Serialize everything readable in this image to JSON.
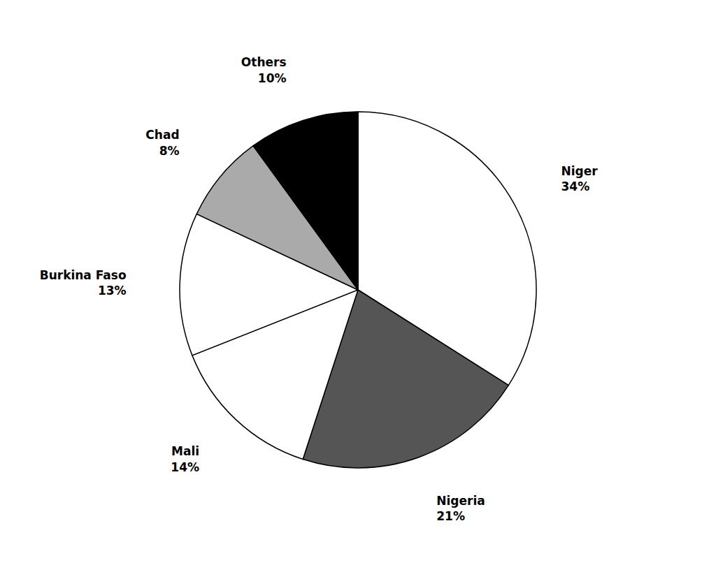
{
  "chart_data": {
    "type": "pie",
    "categories": [
      "Niger",
      "Nigeria",
      "Mali",
      "Burkina Faso",
      "Chad",
      "Others"
    ],
    "values": [
      34,
      21,
      14,
      13,
      8,
      10
    ],
    "value_labels": [
      "34%",
      "21%",
      "14%",
      "13%",
      "8%",
      "10%"
    ],
    "colors": [
      "#ffffff",
      "#555555",
      "#ffffff",
      "#ffffff",
      "#aaaaaa",
      "#000000"
    ],
    "data_labels": true
  }
}
